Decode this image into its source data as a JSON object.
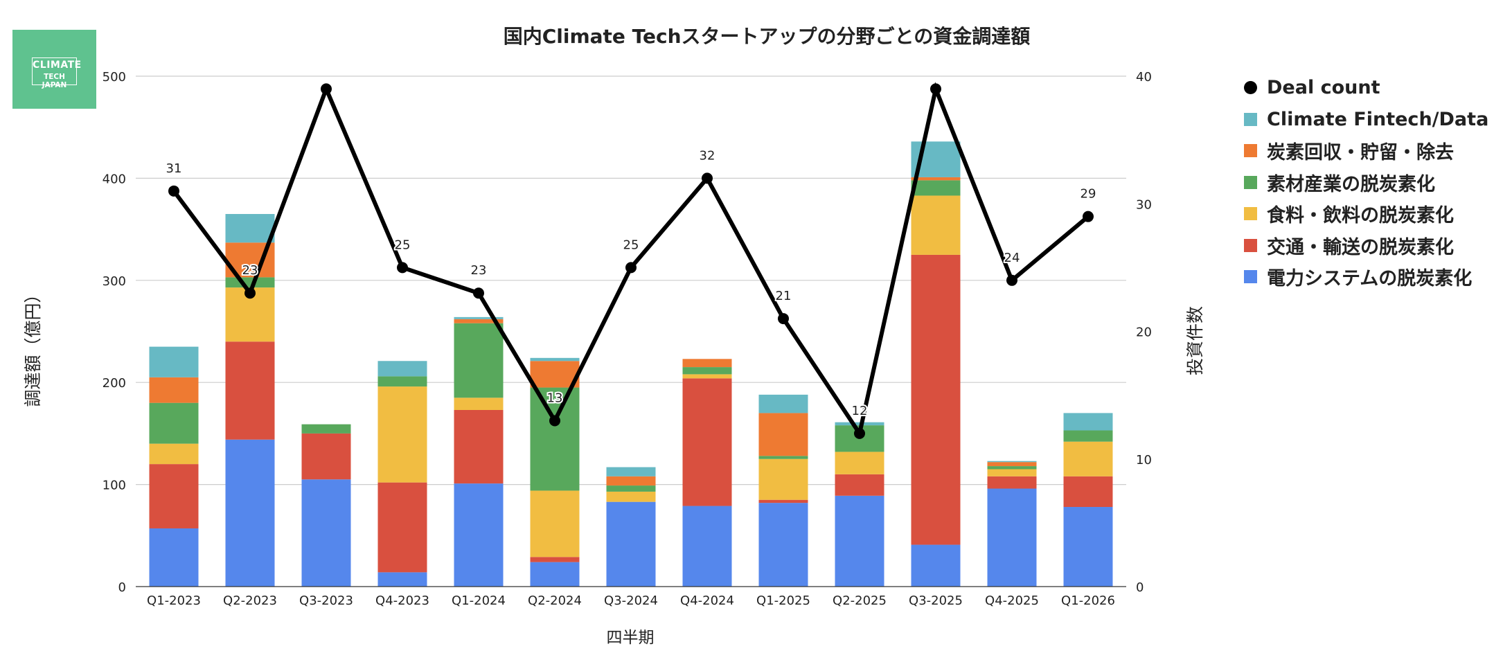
{
  "logo": {
    "line1": "CLIMATE",
    "line2": "TECH JAPAN"
  },
  "colors": {
    "fintech": "#67b9c4",
    "carbon": "#ee7a32",
    "materials": "#58a85c",
    "food": "#f1bd42",
    "transport": "#d9503f",
    "power": "#5587ec",
    "deal": "#000000"
  },
  "chart_data": {
    "type": "bar",
    "stacked": true,
    "title": "国内Climate Techスタートアップの分野ごとの資金調達額",
    "xlabel": "四半期",
    "ylabel": "調達額（億円）",
    "y2label": "投資件数",
    "ylim": [
      0,
      500
    ],
    "y2lim": [
      0,
      40
    ],
    "yticks": [
      0,
      100,
      200,
      300,
      400,
      500
    ],
    "y2ticks": [
      0,
      10,
      20,
      30,
      40
    ],
    "grid": true,
    "legend_position": "right",
    "categories": [
      "Q1-2023",
      "Q2-2023",
      "Q3-2023",
      "Q4-2023",
      "Q1-2024",
      "Q2-2024",
      "Q3-2024",
      "Q4-2024",
      "Q1-2025",
      "Q2-2025",
      "Q3-2025",
      "Q4-2025",
      "Q1-2026"
    ],
    "series": [
      {
        "name": "電力システムの脱炭素化",
        "color_key": "power",
        "values": [
          57,
          144,
          105,
          14,
          101,
          24,
          83,
          79,
          82,
          89,
          41,
          96,
          78
        ]
      },
      {
        "name": "交通・輸送の脱炭素化",
        "color_key": "transport",
        "values": [
          63,
          96,
          45,
          88,
          72,
          5,
          0,
          125,
          3,
          21,
          284,
          12,
          30
        ]
      },
      {
        "name": "食料・飲料の脱炭素化",
        "color_key": "food",
        "values": [
          20,
          53,
          0,
          94,
          12,
          65,
          10,
          4,
          40,
          22,
          58,
          7,
          34
        ]
      },
      {
        "name": "素材産業の脱炭素化",
        "color_key": "materials",
        "values": [
          40,
          10,
          9,
          10,
          73,
          101,
          6,
          7,
          3,
          26,
          15,
          3,
          11
        ]
      },
      {
        "name": "炭素回収・貯留・除去",
        "color_key": "carbon",
        "values": [
          25,
          34,
          0,
          0,
          4,
          26,
          9,
          8,
          42,
          0,
          3,
          4,
          0
        ]
      },
      {
        "name": "Climate Fintech/Data",
        "color_key": "fintech",
        "values": [
          30,
          28,
          0,
          15,
          2,
          3,
          9,
          0,
          18,
          3,
          35,
          1,
          17
        ]
      }
    ],
    "line_series": {
      "name": "Deal count",
      "color_key": "deal",
      "axis": "right",
      "values": [
        31,
        23,
        39,
        25,
        23,
        13,
        25,
        32,
        21,
        12,
        39,
        24,
        29
      ],
      "labels": [
        "31",
        "23",
        "",
        "25",
        "23",
        "13",
        "25",
        "32",
        "21",
        "12",
        "",
        "24",
        "29"
      ]
    },
    "legend_order": [
      "Deal count",
      "Climate Fintech/Data",
      "炭素回収・貯留・除去",
      "素材産業の脱炭素化",
      "食料・飲料の脱炭素化",
      "交通・輸送の脱炭素化",
      "電力システムの脱炭素化"
    ]
  }
}
